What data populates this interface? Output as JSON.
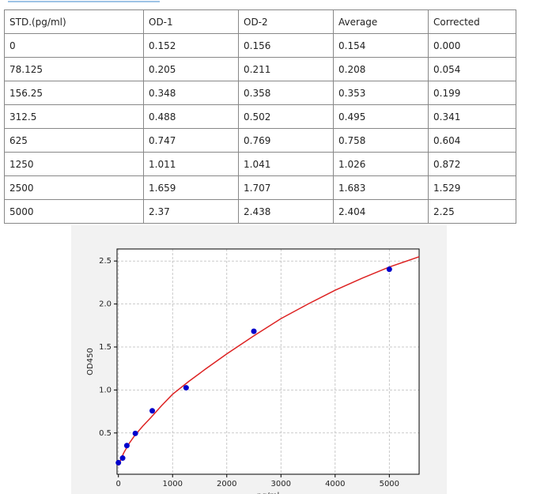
{
  "table": {
    "header": [
      "STD.(pg/ml)",
      "OD-1",
      "OD-2",
      "Average",
      "Corrected"
    ],
    "rows": [
      [
        "0",
        "0.152",
        "0.156",
        "0.154",
        "0.000"
      ],
      [
        "78.125",
        "0.205",
        "0.211",
        "0.208",
        "0.054"
      ],
      [
        "156.25",
        "0.348",
        "0.358",
        "0.353",
        "0.199"
      ],
      [
        "312.5",
        "0.488",
        "0.502",
        "0.495",
        "0.341"
      ],
      [
        "625",
        "0.747",
        "0.769",
        "0.758",
        "0.604"
      ],
      [
        "1250",
        "1.011",
        "1.041",
        "1.026",
        "0.872"
      ],
      [
        "2500",
        "1.659",
        "1.707",
        "1.683",
        "1.529"
      ],
      [
        "5000",
        "2.37",
        "2.438",
        "2.404",
        "2.25"
      ]
    ]
  },
  "chart_data": {
    "type": "scatter",
    "x_label": "pg/ml",
    "y_label": "OD450",
    "points": {
      "color": "#0000cc",
      "x": [
        0,
        78.125,
        156.25,
        312.5,
        625,
        1250,
        2500,
        5000
      ],
      "values": [
        0.154,
        0.208,
        0.353,
        0.495,
        0.758,
        1.026,
        1.683,
        2.404
      ]
    },
    "curve": {
      "color": "#dd2222",
      "x": [
        0,
        50,
        100,
        200,
        300,
        450,
        600,
        800,
        1000,
        1300,
        1600,
        2000,
        2500,
        3000,
        3500,
        4000,
        4500,
        5000,
        5550
      ],
      "values": [
        0.12,
        0.2,
        0.27,
        0.38,
        0.47,
        0.58,
        0.68,
        0.82,
        0.95,
        1.1,
        1.24,
        1.42,
        1.63,
        1.83,
        2.0,
        2.16,
        2.3,
        2.43,
        2.55
      ]
    },
    "xlim": [
      -25,
      5550
    ],
    "ylim": [
      0.02,
      2.64
    ],
    "xticks": [
      0,
      1000,
      2000,
      3000,
      4000,
      5000
    ],
    "yticks": [
      0.5,
      {
        "value": 1,
        "label": "1.0"
      },
      1.5,
      {
        "value": 2,
        "label": "2.0"
      },
      2.5
    ],
    "grid": true
  }
}
